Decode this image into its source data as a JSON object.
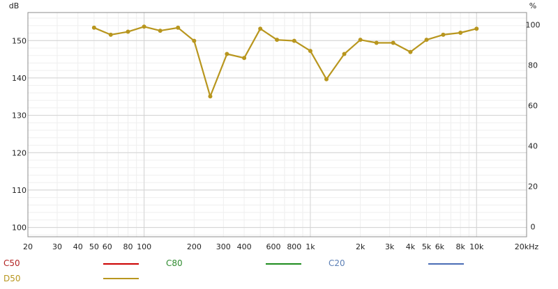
{
  "chart_data": {
    "type": "line",
    "x_scale": "log",
    "xlim": [
      20,
      20000
    ],
    "x_ticks": [
      {
        "v": 20,
        "t": "20"
      },
      {
        "v": 30,
        "t": "30"
      },
      {
        "v": 40,
        "t": "40"
      },
      {
        "v": 50,
        "t": "50"
      },
      {
        "v": 60,
        "t": "60"
      },
      {
        "v": 80,
        "t": "80"
      },
      {
        "v": 100,
        "t": "100"
      },
      {
        "v": 200,
        "t": "200"
      },
      {
        "v": 300,
        "t": "300"
      },
      {
        "v": 400,
        "t": "400"
      },
      {
        "v": 600,
        "t": "600"
      },
      {
        "v": 800,
        "t": "800"
      },
      {
        "v": 1000,
        "t": "1k"
      },
      {
        "v": 2000,
        "t": "2k"
      },
      {
        "v": 3000,
        "t": "3k"
      },
      {
        "v": 4000,
        "t": "4k"
      },
      {
        "v": 5000,
        "t": "5k"
      },
      {
        "v": 6000,
        "t": "6k"
      },
      {
        "v": 8000,
        "t": "8k"
      },
      {
        "v": 10000,
        "t": "10k"
      },
      {
        "v": 20000,
        "t": "20kHz"
      }
    ],
    "left_axis": {
      "unit": "dB",
      "ylim": [
        97.5,
        157.5
      ],
      "ticks": [
        100,
        110,
        120,
        130,
        140,
        150
      ]
    },
    "right_axis": {
      "unit": "%",
      "ylim": [
        -5,
        106
      ],
      "ticks": [
        0,
        20,
        40,
        60,
        80,
        100
      ]
    },
    "grid": true,
    "series": [
      {
        "name": "D50",
        "color": "#b8961e",
        "x": [
          50,
          63,
          80,
          100,
          125,
          160,
          200,
          250,
          315,
          400,
          500,
          630,
          800,
          1000,
          1250,
          1600,
          2000,
          2500,
          3150,
          4000,
          5000,
          6300,
          8000,
          10000
        ],
        "y": [
          98.5,
          95,
          96.5,
          99,
          97,
          98.5,
          92,
          64.5,
          85.5,
          83.5,
          98,
          92.5,
          92,
          87,
          73,
          85.5,
          92.5,
          91,
          91,
          86.5,
          92.5,
          95,
          96,
          98
        ]
      }
    ],
    "legend": {
      "placement": "bottom",
      "items": [
        {
          "name": "C50",
          "label_color": "#b22222",
          "line_color": "#cc0000"
        },
        {
          "name": "C80",
          "label_color": "#2e8b2e",
          "line_color": "#1e8c1e"
        },
        {
          "name": "C20",
          "label_color": "#5b7fb5",
          "line_color": "#4a6cb5"
        },
        {
          "name": "D50",
          "label_color": "#b8961e",
          "line_color": "#b8961e"
        }
      ]
    }
  }
}
